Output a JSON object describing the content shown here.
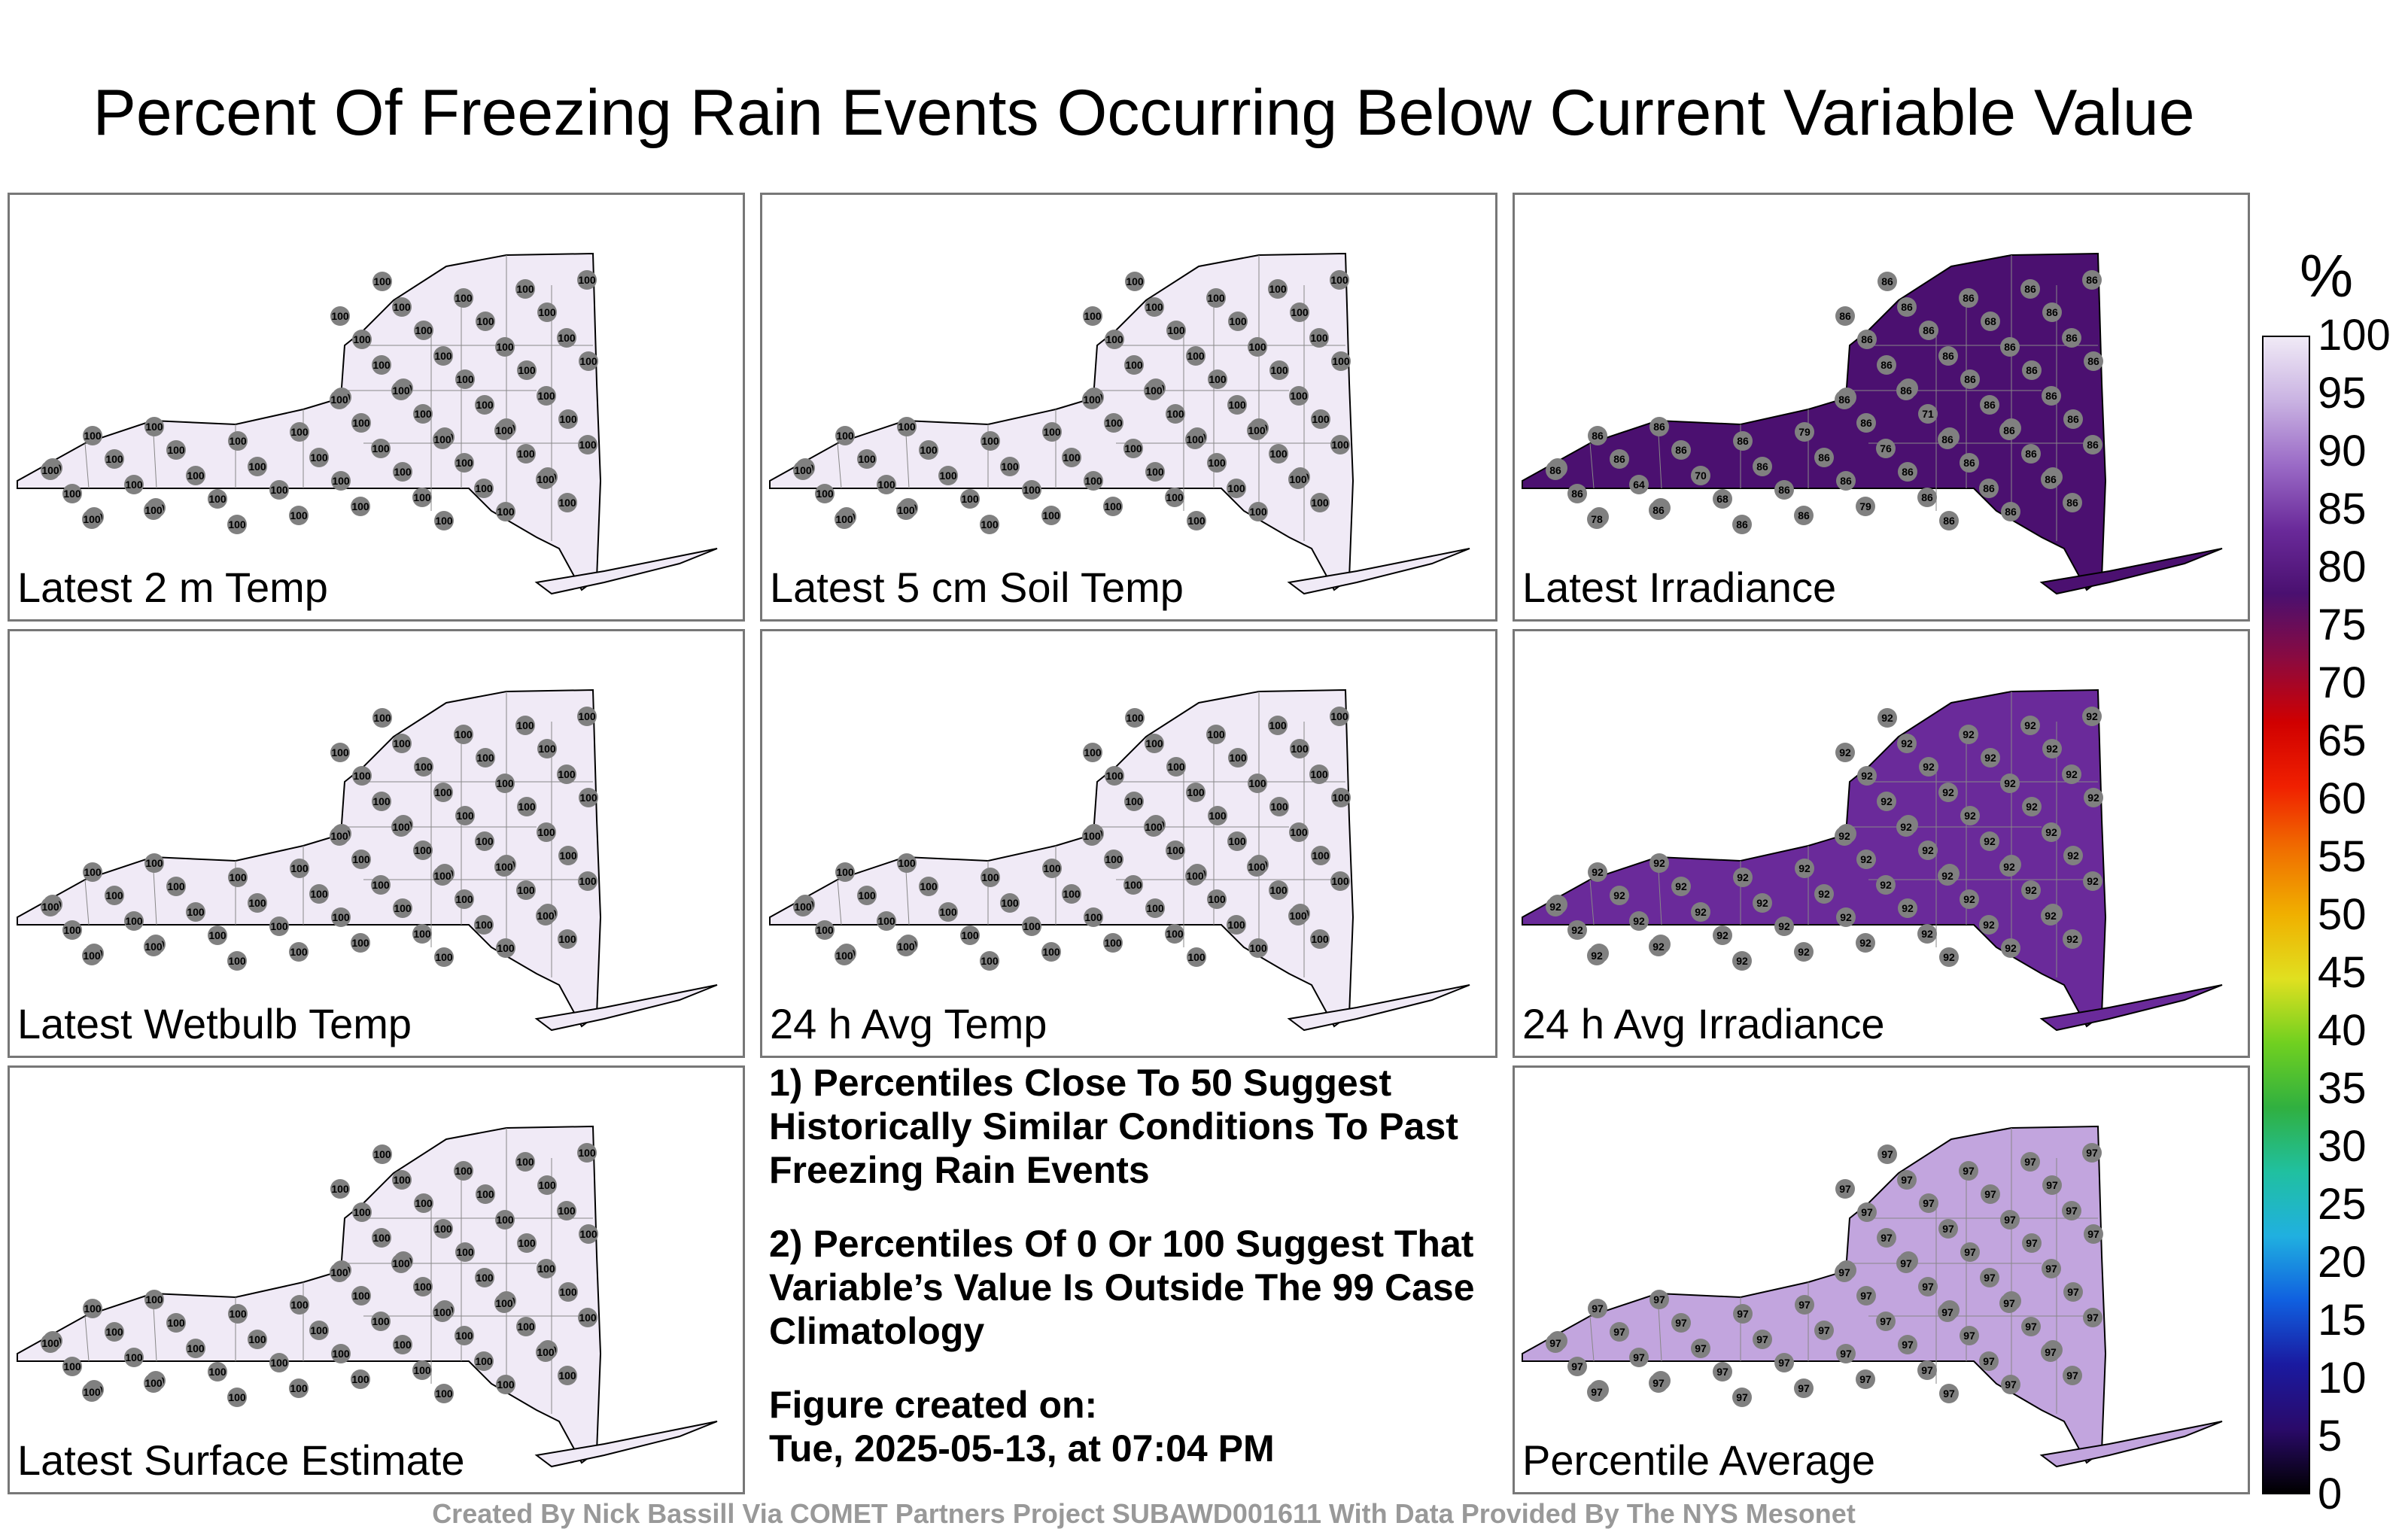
{
  "title": "Percent Of Freezing Rain Events Occurring Below Current Variable Value",
  "panels": [
    {
      "label": "Latest 2 m Temp",
      "value": 100,
      "fill": "#f0eaf6"
    },
    {
      "label": "Latest 5 cm Soil Temp",
      "value": 100,
      "fill": "#f0eaf6"
    },
    {
      "label": "Latest Irradiance",
      "value": 86,
      "fill": "#4b1070"
    },
    {
      "label": "Latest Wetbulb Temp",
      "value": 100,
      "fill": "#f0eaf6"
    },
    {
      "label": "24 h Avg Temp",
      "value": 100,
      "fill": "#f0eaf6"
    },
    {
      "label": "24 h Avg Irradiance",
      "value": 92,
      "fill": "#6a2a9a"
    },
    {
      "label": "Latest Surface Estimate",
      "value": 100,
      "fill": "#f0eaf6"
    },
    {
      "label": "Percentile Average",
      "value": 97,
      "fill": "#c2a5de"
    }
  ],
  "notes": {
    "note1": "1) Percentiles Close To 50 Suggest Historically Similar Conditions To Past Freezing Rain Events",
    "note2": "2) Percentiles Of 0 Or 100 Suggest That Variable’s Value Is Outside The 99 Case Climatology",
    "created_label": "Figure created on:",
    "created_date": "Tue, 2025-05-13, at 07:04 PM"
  },
  "colorbar": {
    "unit": "%",
    "ticks": [
      "100",
      "95",
      "90",
      "85",
      "80",
      "75",
      "70",
      "65",
      "60",
      "55",
      "50",
      "45",
      "40",
      "35",
      "30",
      "25",
      "20",
      "15",
      "10",
      "5",
      "0"
    ],
    "colors": [
      "#000000",
      "#2a0a6a",
      "#1a1aa0",
      "#1060e0",
      "#20b0e0",
      "#20c0a0",
      "#30b040",
      "#70d020",
      "#e0e020",
      "#f0b000",
      "#f07000",
      "#f02000",
      "#d00000",
      "#8a0a40",
      "#4a1070",
      "#6a2a9a",
      "#9a6ac6",
      "#c9b2e2",
      "#f0eaf6"
    ]
  },
  "credit": "Created By Nick Bassill Via COMET Partners Project SUBAWD001611 With Data Provided By The NYS Mesonet",
  "map": {
    "station_value_irradiance_hot": [
      "68",
      "70",
      "68",
      "68",
      "79",
      "71",
      "64",
      "70",
      "79",
      "76",
      "78",
      "69",
      "71"
    ],
    "station_color": "#808080"
  }
}
